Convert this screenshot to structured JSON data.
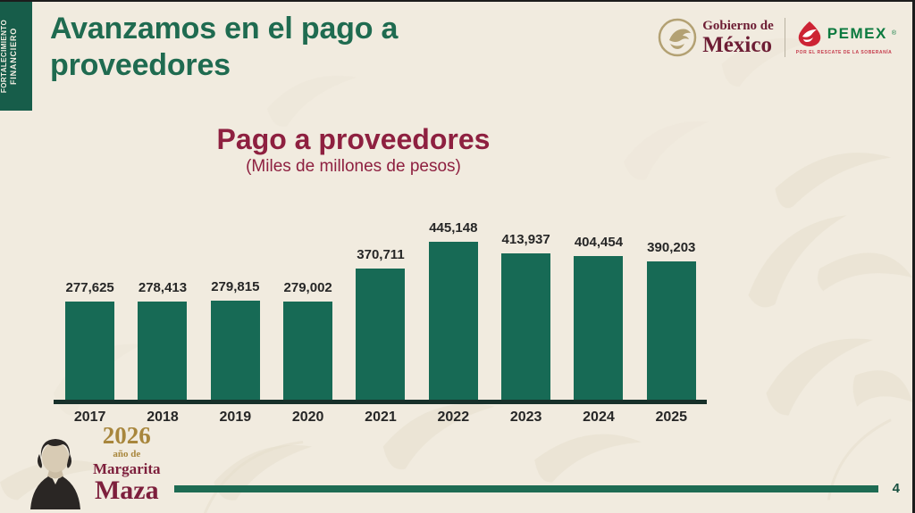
{
  "sidebar": {
    "line1": "FORTALECIMIENTO",
    "line2": "FINANCIERO"
  },
  "header": {
    "title": "Avanzamos en el pago a proveedores",
    "gobierno_logo": {
      "line1": "Gobierno de",
      "line2": "México"
    },
    "pemex_logo": {
      "name": "PEMEX",
      "reg": "®",
      "tagline": "POR EL RESCATE DE LA SOBERANÍA"
    }
  },
  "chart": {
    "title": "Pago a proveedores",
    "subtitle": "(Miles de millones de pesos)"
  },
  "chart_data": {
    "type": "bar",
    "title": "Pago a proveedores",
    "subtitle": "(Miles de millones de pesos)",
    "categories": [
      "2017",
      "2018",
      "2019",
      "2020",
      "2021",
      "2022",
      "2023",
      "2024",
      "2025"
    ],
    "values": [
      277625,
      278413,
      279815,
      279002,
      370711,
      445148,
      413937,
      404454,
      390203
    ],
    "value_labels": [
      "277,625",
      "278,413",
      "279,815",
      "279,002",
      "370,711",
      "445,148",
      "413,937",
      "404,454",
      "390,203"
    ],
    "xlabel": "",
    "ylabel": "Miles de millones de pesos",
    "ylim": [
      0,
      460000
    ],
    "grid": false,
    "legend": "none",
    "bar_color": "#176a55"
  },
  "footer": {
    "maza_badge": {
      "year": "2026",
      "line2": "año de",
      "line3": "Margarita",
      "line4": "Maza"
    },
    "page_number": "4"
  },
  "icons": {
    "seal": "mexico-eagle-seal-icon",
    "pemex": "pemex-emblem-icon",
    "portrait": "margarita-maza-portrait"
  },
  "colors": {
    "background": "#f1ebdf",
    "pattern": "#e5decc",
    "title_green": "#1f6b50",
    "sidebar_green": "#175d4a",
    "bar_green": "#176a55",
    "maroon": "#8e2040",
    "gold": "#a8863c",
    "pemex_red": "#cd2334",
    "pemex_green": "#0b7a3f",
    "footer_bar_green": "#1e6b53"
  }
}
